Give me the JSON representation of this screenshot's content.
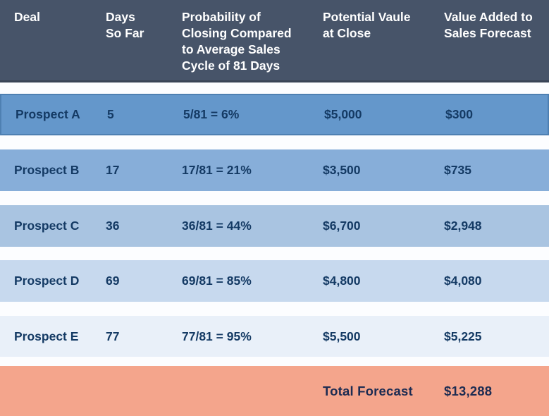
{
  "title": "Sales Forecast Table",
  "colors": {
    "header_bg": "#475469",
    "header_text": "#ffffff",
    "row_text": "#143a64",
    "row_a_bg": "#6497cb",
    "row_a_border": "#4e80b2",
    "row_b_bg": "#87aed9",
    "row_c_bg": "#a9c4e1",
    "row_d_bg": "#c7d9ee",
    "row_e_bg": "#e9f0f9",
    "total_bg": "#f4a58c",
    "total_text": "#1d2c52",
    "gap_bg": "#fcfdff"
  },
  "table": {
    "headers": [
      "Deal",
      "Days\nSo Far",
      "Probability of\nClosing Compared\nto Average Sales\nCycle of 81 Days",
      "Potential Vaule\nat Close",
      "Value Added to\nSales Forecast"
    ],
    "rows": [
      {
        "deal": "Prospect A",
        "days": "5",
        "probability": "5/81 = 6%",
        "potential_value": "$5,000",
        "value_added": "$300"
      },
      {
        "deal": "Prospect B",
        "days": "17",
        "probability": "17/81 = 21%",
        "potential_value": "$3,500",
        "value_added": "$735"
      },
      {
        "deal": "Prospect C",
        "days": "36",
        "probability": "36/81 = 44%",
        "potential_value": "$6,700",
        "value_added": "$2,948"
      },
      {
        "deal": "Prospect D",
        "days": "69",
        "probability": "69/81 = 85%",
        "potential_value": "$4,800",
        "value_added": "$4,080"
      },
      {
        "deal": "Prospect E",
        "days": "77",
        "probability": "77/81 = 95%",
        "potential_value": "$5,500",
        "value_added": "$5,225"
      }
    ],
    "total": {
      "label": "Total Forecast",
      "value": "$13,288"
    }
  },
  "chart_data": {
    "type": "table",
    "columns": [
      "Deal",
      "Days So Far",
      "Probability of Closing Compared to Average Sales Cycle of 81 Days",
      "Potential Vaule at Close",
      "Value Added to Sales Forecast"
    ],
    "rows": [
      [
        "Prospect A",
        5,
        "5/81 = 6%",
        5000,
        300
      ],
      [
        "Prospect B",
        17,
        "17/81 = 21%",
        3500,
        735
      ],
      [
        "Prospect C",
        36,
        "36/81 = 44%",
        6700,
        2948
      ],
      [
        "Prospect D",
        69,
        "69/81 = 85%",
        4800,
        4080
      ],
      [
        "Prospect E",
        77,
        "77/81 = 95%",
        5500,
        5225
      ]
    ],
    "total_label": "Total Forecast",
    "total_value": 13288,
    "average_sales_cycle_days": 81
  }
}
